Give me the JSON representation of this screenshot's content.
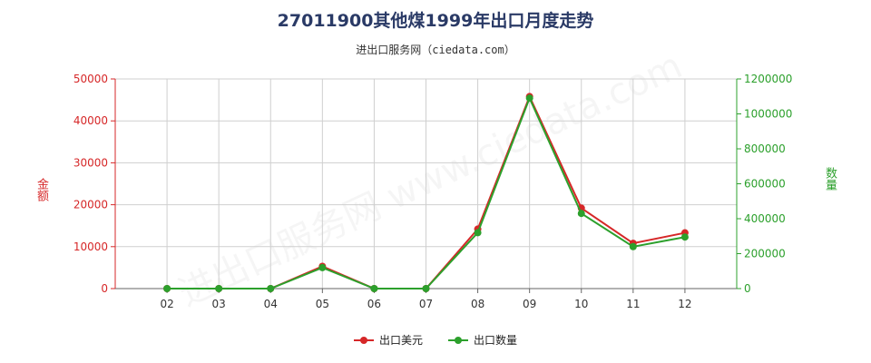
{
  "title": "27011900其他煤1999年出口月度走势",
  "subtitle": "进出口服务网（ciedata.com）",
  "watermark": "进出口服务网 www.ciedata.com",
  "colors": {
    "primary": "#d62728",
    "secondary": "#2ca02c",
    "title": "#2a3a66"
  },
  "chart_data": {
    "type": "line",
    "categories": [
      "02",
      "03",
      "04",
      "05",
      "06",
      "07",
      "08",
      "09",
      "10",
      "11",
      "12"
    ],
    "series": [
      {
        "name": "出口美元",
        "axis": "left",
        "color": "#d62728",
        "values": [
          0,
          0,
          0,
          5300,
          0,
          0,
          14200,
          45800,
          19200,
          10800,
          13300
        ]
      },
      {
        "name": "出口数量",
        "axis": "right",
        "color": "#2ca02c",
        "values": [
          0,
          0,
          0,
          120000,
          0,
          0,
          320000,
          1090000,
          430000,
          240000,
          295000
        ]
      }
    ],
    "y_left": {
      "label": "金额",
      "ylim": [
        0,
        50000
      ],
      "ticks": [
        "0",
        "10000",
        "20000",
        "30000",
        "40000",
        "50000"
      ]
    },
    "y_right": {
      "label": "数量",
      "ylim": [
        0,
        1200000
      ],
      "ticks": [
        "0",
        "200000",
        "400000",
        "600000",
        "800000",
        "1000000",
        "1200000"
      ]
    },
    "grid": true,
    "legend_position": "bottom"
  }
}
